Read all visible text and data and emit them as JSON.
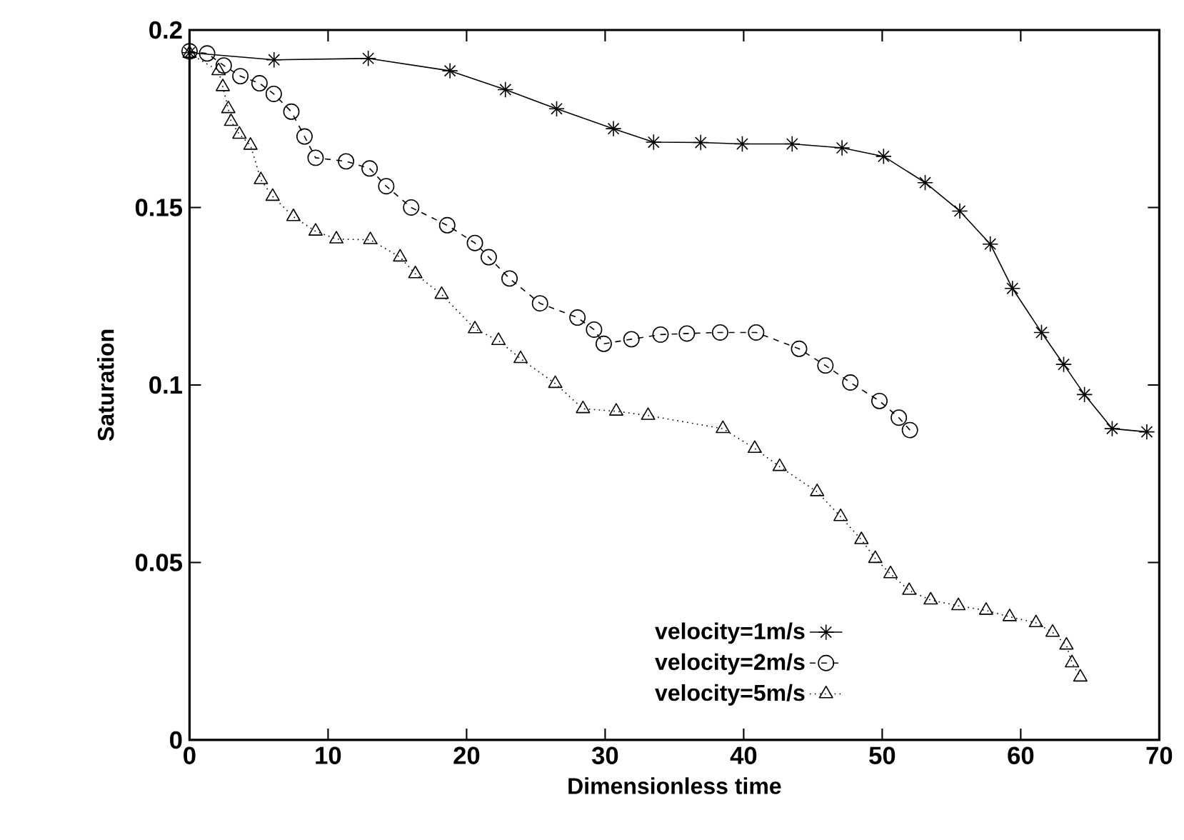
{
  "chart_data": {
    "type": "line",
    "xlabel": "Dimensionless time",
    "ylabel": "Saturation",
    "xlim": [
      0,
      70
    ],
    "ylim": [
      0,
      0.2
    ],
    "xticks": [
      0,
      10,
      20,
      30,
      40,
      50,
      60,
      70
    ],
    "yticks": [
      0,
      0.05,
      0.1,
      0.15,
      0.2
    ],
    "grid": false,
    "legend": "bottom",
    "series": [
      {
        "name": "velocity=1m/s",
        "color": "#000000",
        "marker": "cross",
        "line_style": "solid",
        "x": [
          0,
          6.1,
          12.9,
          18.8,
          22.8,
          26.5,
          30.6,
          33.5,
          36.9,
          39.9,
          43.5,
          47.1,
          50.1,
          53.1,
          55.6,
          57.8,
          59.4,
          61.5,
          63.1,
          64.6,
          66.6,
          69.1
        ],
        "values": [
          0.1936,
          0.1916,
          0.192,
          0.1885,
          0.1832,
          0.1778,
          0.1722,
          0.1684,
          0.1683,
          0.1679,
          0.1679,
          0.1668,
          0.1644,
          0.157,
          0.149,
          0.1397,
          0.1272,
          0.1148,
          0.1058,
          0.0973,
          0.0877,
          0.0868
        ]
      },
      {
        "name": "velocity=2m/s",
        "color": "#000000",
        "marker": "circle",
        "line_style": "dashed",
        "x": [
          0,
          1.27,
          2.47,
          3.67,
          5.05,
          6.08,
          7.35,
          8.3,
          9.1,
          11.3,
          13.0,
          14.2,
          16.0,
          18.6,
          20.6,
          21.6,
          23.1,
          25.3,
          28.0,
          29.2,
          29.9,
          31.9,
          34.0,
          35.9,
          38.3,
          40.9,
          44.0,
          45.9,
          47.7,
          49.8,
          51.2,
          52.0
        ],
        "values": [
          0.194,
          0.1934,
          0.19,
          0.187,
          0.185,
          0.182,
          0.177,
          0.17,
          0.164,
          0.163,
          0.161,
          0.156,
          0.15,
          0.145,
          0.14,
          0.136,
          0.13,
          0.123,
          0.119,
          0.1156,
          0.1116,
          0.1129,
          0.1142,
          0.1145,
          0.1148,
          0.1148,
          0.1102,
          0.1055,
          0.1007,
          0.0955,
          0.0908,
          0.0873
        ]
      },
      {
        "name": "velocity=5m/s",
        "color": "#000000",
        "marker": "triangle",
        "line_style": "dotted",
        "x": [
          0,
          2.1,
          2.4,
          2.8,
          3.0,
          3.6,
          4.4,
          5.15,
          6.0,
          7.5,
          9.1,
          10.6,
          13.05,
          15.2,
          16.3,
          18.2,
          20.6,
          22.3,
          23.9,
          26.4,
          28.4,
          30.8,
          33.1,
          38.5,
          40.8,
          42.6,
          45.3,
          47.0,
          48.5,
          49.5,
          50.6,
          51.95,
          53.5,
          55.5,
          57.5,
          59.2,
          61.1,
          62.3,
          63.3,
          63.7,
          64.3
        ],
        "values": [
          0.1934,
          0.1885,
          0.184,
          0.1778,
          0.1742,
          0.1706,
          0.1675,
          0.1578,
          0.1531,
          0.1474,
          0.1433,
          0.1411,
          0.1409,
          0.136,
          0.1313,
          0.1255,
          0.1158,
          0.1125,
          0.1074,
          0.1004,
          0.0933,
          0.0926,
          0.0914,
          0.0877,
          0.0821,
          0.077,
          0.0699,
          0.0629,
          0.0564,
          0.0511,
          0.0468,
          0.0421,
          0.0394,
          0.0378,
          0.0365,
          0.0347,
          0.033,
          0.0303,
          0.0267,
          0.0217,
          0.0177
        ]
      }
    ]
  }
}
